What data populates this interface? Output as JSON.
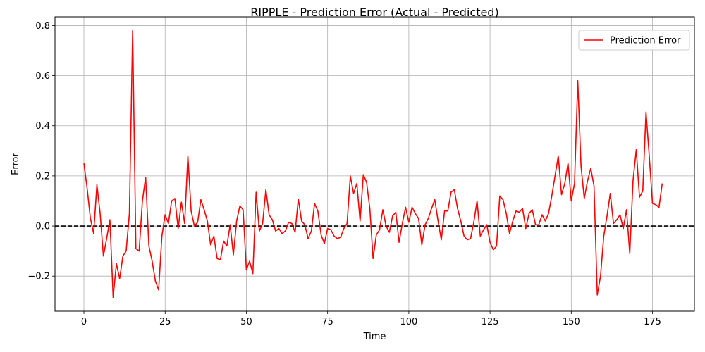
{
  "chart_data": {
    "type": "line",
    "title": "RIPPLE - Prediction Error (Actual - Predicted)",
    "xlabel": "Time",
    "ylabel": "Error",
    "xlim": [
      -8.9,
      187.9
    ],
    "ylim": [
      -0.34,
      0.835
    ],
    "xticks": [
      0,
      25,
      50,
      75,
      100,
      125,
      150,
      175
    ],
    "yticks": [
      -0.2,
      0.0,
      0.2,
      0.4,
      0.6,
      0.8
    ],
    "ytick_labels": [
      "−0.2",
      "0.0",
      "0.2",
      "0.4",
      "0.6",
      "0.8"
    ],
    "grid": true,
    "legend_position": "top-right",
    "reference_line": {
      "y": 0,
      "style": "dashed",
      "color": "#000000"
    },
    "series": [
      {
        "name": "Prediction Error",
        "color": "#ff0000",
        "x": [
          0,
          1,
          2,
          3,
          4,
          5,
          6,
          7,
          8,
          9,
          10,
          11,
          12,
          13,
          14,
          15,
          16,
          17,
          18,
          19,
          20,
          21,
          22,
          23,
          24,
          25,
          26,
          27,
          28,
          29,
          30,
          31,
          32,
          33,
          34,
          35,
          36,
          37,
          38,
          39,
          40,
          41,
          42,
          43,
          44,
          45,
          46,
          47,
          48,
          49,
          50,
          51,
          52,
          53,
          54,
          55,
          56,
          57,
          58,
          59,
          60,
          61,
          62,
          63,
          64,
          65,
          66,
          67,
          68,
          69,
          70,
          71,
          72,
          73,
          74,
          75,
          76,
          77,
          78,
          79,
          80,
          81,
          82,
          83,
          84,
          85,
          86,
          87,
          88,
          89,
          90,
          91,
          92,
          93,
          94,
          95,
          96,
          97,
          98,
          99,
          100,
          101,
          102,
          103,
          104,
          105,
          106,
          107,
          108,
          109,
          110,
          111,
          112,
          113,
          114,
          115,
          116,
          117,
          118,
          119,
          120,
          121,
          122,
          123,
          124,
          125,
          126,
          127,
          128,
          129,
          130,
          131,
          132,
          133,
          134,
          135,
          136,
          137,
          138,
          139,
          140,
          141,
          142,
          143,
          144,
          145,
          146,
          147,
          148,
          149,
          150,
          151,
          152,
          153,
          154,
          155,
          156,
          157,
          158,
          159,
          160,
          161,
          162,
          163,
          164,
          165,
          166,
          167,
          168,
          169,
          170,
          171,
          172,
          173,
          174,
          175,
          176,
          177,
          178
        ],
        "values": [
          0.25,
          0.15,
          0.03,
          -0.03,
          0.165,
          0.05,
          -0.12,
          -0.05,
          0.025,
          -0.285,
          -0.15,
          -0.21,
          -0.12,
          -0.1,
          0.05,
          0.78,
          -0.09,
          -0.1,
          0.1,
          0.195,
          -0.08,
          -0.14,
          -0.22,
          -0.255,
          -0.04,
          0.045,
          0.01,
          0.1,
          0.11,
          -0.01,
          0.095,
          0.01,
          0.28,
          0.06,
          0.0,
          0.015,
          0.105,
          0.065,
          0.02,
          -0.075,
          -0.04,
          -0.13,
          -0.135,
          -0.06,
          -0.08,
          0.005,
          -0.115,
          0.02,
          0.08,
          0.065,
          -0.175,
          -0.14,
          -0.19,
          0.135,
          -0.02,
          0.01,
          0.145,
          0.045,
          0.025,
          -0.02,
          -0.01,
          -0.03,
          -0.02,
          0.015,
          0.01,
          -0.025,
          0.108,
          0.02,
          0.005,
          -0.05,
          -0.02,
          0.09,
          0.06,
          -0.035,
          -0.07,
          -0.01,
          -0.015,
          -0.04,
          -0.05,
          -0.045,
          -0.01,
          0.01,
          0.2,
          0.13,
          0.17,
          0.02,
          0.205,
          0.175,
          0.07,
          -0.13,
          -0.035,
          -0.015,
          0.065,
          0.0,
          -0.025,
          0.04,
          0.055,
          -0.065,
          0.01,
          0.075,
          0.015,
          0.075,
          0.05,
          0.03,
          -0.075,
          0.005,
          0.03,
          0.07,
          0.105,
          0.02,
          -0.055,
          0.06,
          0.06,
          0.135,
          0.145,
          0.07,
          0.02,
          -0.04,
          -0.055,
          -0.05,
          0.015,
          0.1,
          -0.04,
          -0.015,
          0.005,
          -0.065,
          -0.095,
          -0.08,
          0.12,
          0.105,
          0.05,
          -0.03,
          0.02,
          0.06,
          0.055,
          0.07,
          -0.01,
          0.05,
          0.065,
          0.005,
          0.005,
          0.045,
          0.02,
          0.05,
          0.12,
          0.2,
          0.28,
          0.125,
          0.17,
          0.25,
          0.1,
          0.17,
          0.58,
          0.24,
          0.11,
          0.18,
          0.23,
          0.16,
          -0.275,
          -0.2,
          -0.04,
          0.04,
          0.13,
          0.01,
          0.025,
          0.045,
          -0.01,
          0.065,
          -0.11,
          0.18,
          0.305,
          0.115,
          0.14,
          0.455,
          0.28,
          0.09,
          0.085,
          0.075,
          0.17
        ]
      }
    ]
  }
}
